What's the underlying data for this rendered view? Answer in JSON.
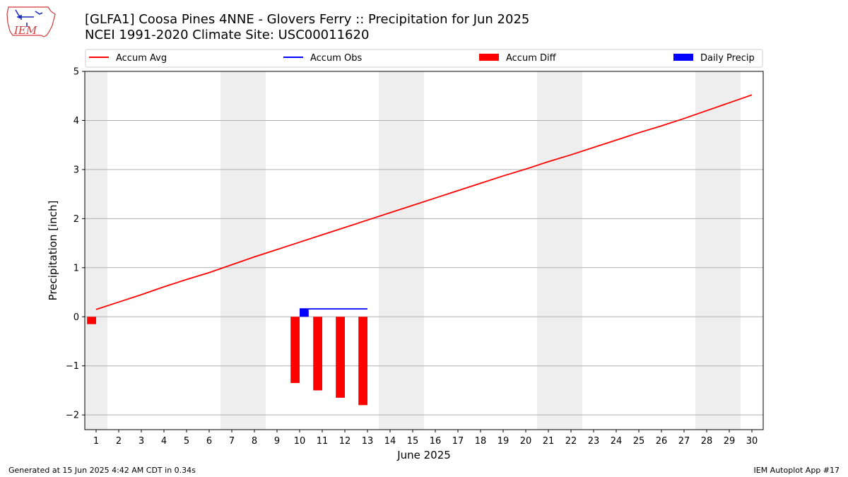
{
  "header": {
    "title_line1": "[GLFA1] Coosa Pines 4NNE - Glovers Ferry :: Precipitation for Jun 2025",
    "title_line2": "NCEI 1991-2020 Climate Site: USC00011620",
    "logo_text": "IEM"
  },
  "footer": {
    "generated": "Generated at 15 Jun 2025 4:42 AM CDT in 0.34s",
    "app": "IEM Autoplot App #17"
  },
  "colors": {
    "avg": "#ff0000",
    "obs": "#0000ff",
    "diff": "#ff0000",
    "daily": "#0000ff",
    "weekend": "#eeeeee",
    "grid": "#b0b0b0"
  },
  "chart_data": {
    "type": "bar",
    "xlabel": "June 2025",
    "ylabel": "Precipitation [inch]",
    "xlim": [
      0.5,
      30.5
    ],
    "ylim": [
      -2.3,
      5.0
    ],
    "yticks": [
      -2,
      -1,
      0,
      1,
      2,
      3,
      4,
      5
    ],
    "ytick_labels": [
      "−2",
      "−1",
      "0",
      "1",
      "2",
      "3",
      "4",
      "5"
    ],
    "xtick_labels": [
      "1",
      "2",
      "3",
      "4",
      "5",
      "6",
      "7",
      "8",
      "9",
      "10",
      "11",
      "12",
      "13",
      "14",
      "15",
      "16",
      "17",
      "18",
      "19",
      "20",
      "21",
      "22",
      "23",
      "24",
      "25",
      "26",
      "27",
      "28",
      "29",
      "30"
    ],
    "shaded_day_ranges": [
      [
        0.5,
        1.5
      ],
      [
        6.5,
        8.5
      ],
      [
        13.5,
        15.5
      ],
      [
        20.5,
        22.5
      ],
      [
        27.5,
        29.5
      ]
    ],
    "legend": [
      "Accum Avg",
      "Accum Obs",
      "Accum Diff",
      "Daily Precip"
    ],
    "series": [
      {
        "name": "Accum Avg",
        "kind": "line",
        "x": [
          1,
          2,
          3,
          4,
          5,
          6,
          7,
          8,
          9,
          10,
          11,
          12,
          13,
          14,
          15,
          16,
          17,
          18,
          19,
          20,
          21,
          22,
          23,
          24,
          25,
          26,
          27,
          28,
          29,
          30
        ],
        "values": [
          0.15,
          0.3,
          0.45,
          0.61,
          0.76,
          0.9,
          1.06,
          1.22,
          1.37,
          1.52,
          1.67,
          1.82,
          1.97,
          2.12,
          2.27,
          2.42,
          2.57,
          2.72,
          2.87,
          3.01,
          3.16,
          3.3,
          3.45,
          3.6,
          3.75,
          3.89,
          4.04,
          4.2,
          4.36,
          4.52
        ]
      },
      {
        "name": "Accum Obs",
        "kind": "line",
        "x": [
          10,
          11,
          12,
          13
        ],
        "values": [
          0.16,
          0.16,
          0.16,
          0.16
        ]
      },
      {
        "name": "Accum Diff",
        "kind": "bar",
        "x": [
          1,
          10,
          11,
          12,
          13
        ],
        "values": [
          -0.15,
          -1.35,
          -1.5,
          -1.65,
          -1.8
        ]
      },
      {
        "name": "Daily Precip",
        "kind": "bar",
        "x": [
          10
        ],
        "values": [
          0.16
        ]
      }
    ]
  }
}
